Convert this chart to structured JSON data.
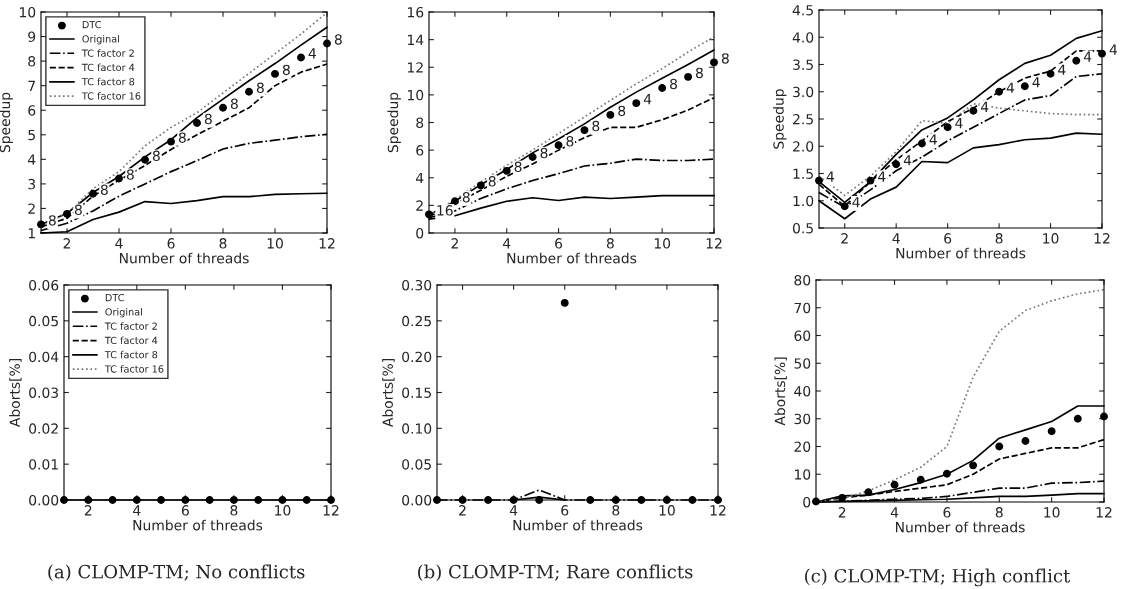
{
  "chart_data": [
    {
      "type": "line",
      "x": [
        1,
        2,
        3,
        4,
        5,
        6,
        7,
        8,
        9,
        10,
        11,
        12
      ],
      "xlim": [
        1,
        12
      ],
      "xticks": [
        2,
        4,
        6,
        8,
        10,
        12
      ],
      "ylim": [
        1,
        10
      ],
      "yticks": [
        1,
        2,
        3,
        4,
        5,
        6,
        7,
        8,
        9,
        10
      ],
      "xlabel": "Number of threads",
      "ylabel": "Speedup",
      "legend": "top left",
      "grid": false,
      "annotations": [
        {
          "text": "8",
          "x": 1,
          "y": 1.35
        },
        {
          "text": "8",
          "x": 2,
          "y": 1.78
        },
        {
          "text": "8",
          "x": 3,
          "y": 2.6
        },
        {
          "text": "8",
          "x": 4,
          "y": 3.22
        },
        {
          "text": "8",
          "x": 5,
          "y": 3.98
        },
        {
          "text": "8",
          "x": 6,
          "y": 4.72
        },
        {
          "text": "8",
          "x": 7,
          "y": 5.48
        },
        {
          "text": "8",
          "x": 8,
          "y": 6.1
        },
        {
          "text": "8",
          "x": 9,
          "y": 6.75
        },
        {
          "text": "8",
          "x": 10,
          "y": 7.48
        },
        {
          "text": "4",
          "x": 11,
          "y": 8.15
        },
        {
          "text": "8",
          "x": 12,
          "y": 8.72
        }
      ],
      "series": [
        {
          "name": "DTC",
          "type": "scatter",
          "marker": "circle",
          "color": "#000000",
          "values": [
            1.35,
            1.78,
            2.6,
            3.22,
            3.98,
            4.72,
            5.48,
            6.1,
            6.75,
            7.48,
            8.15,
            8.72
          ]
        },
        {
          "name": "Original",
          "color": "#000000",
          "line_style": "solid",
          "values": [
            1.0,
            1.05,
            1.55,
            1.85,
            2.28,
            2.2,
            2.32,
            2.48,
            2.48,
            2.57,
            2.6,
            2.62
          ]
        },
        {
          "name": "TC factor 2",
          "color": "#000000",
          "line_style": "dashdot",
          "values": [
            1.1,
            1.4,
            1.9,
            2.5,
            3.0,
            3.5,
            3.95,
            4.42,
            4.65,
            4.78,
            4.92,
            5.02
          ]
        },
        {
          "name": "TC factor 4",
          "color": "#000000",
          "line_style": "dashed",
          "values": [
            1.25,
            1.6,
            2.5,
            3.15,
            3.75,
            4.4,
            5.0,
            5.55,
            6.1,
            7.0,
            7.55,
            7.88
          ]
        },
        {
          "name": "TC factor 8",
          "color": "#000000",
          "line_style": "solid",
          "values": [
            1.35,
            1.8,
            2.65,
            3.3,
            4.1,
            4.8,
            5.7,
            6.45,
            7.2,
            7.9,
            8.65,
            9.38
          ]
        },
        {
          "name": "TC factor 16",
          "color": "#777777",
          "line_style": "dotted",
          "values": [
            1.3,
            1.8,
            2.8,
            3.5,
            4.55,
            5.3,
            5.9,
            6.7,
            7.5,
            8.3,
            9.1,
            9.98
          ]
        }
      ]
    },
    {
      "type": "line",
      "x": [
        1,
        2,
        3,
        4,
        5,
        6,
        7,
        8,
        9,
        10,
        11,
        12
      ],
      "xlim": [
        1,
        12
      ],
      "xticks": [
        2,
        4,
        6,
        8,
        10,
        12
      ],
      "ylim": [
        0,
        16
      ],
      "yticks": [
        0,
        2,
        4,
        6,
        8,
        10,
        12,
        14,
        16
      ],
      "xlabel": "Number of threads",
      "ylabel": "Speedup",
      "grid": false,
      "annotations": [
        {
          "text": "16",
          "x": 1,
          "y": 1.35
        },
        {
          "text": "8",
          "x": 2,
          "y": 2.3
        },
        {
          "text": "8",
          "x": 3,
          "y": 3.45
        },
        {
          "text": "8",
          "x": 4,
          "y": 4.5
        },
        {
          "text": "8",
          "x": 5,
          "y": 5.5
        },
        {
          "text": "8",
          "x": 6,
          "y": 6.35
        },
        {
          "text": "8",
          "x": 7,
          "y": 7.45
        },
        {
          "text": "8",
          "x": 8,
          "y": 8.55
        },
        {
          "text": "4",
          "x": 9,
          "y": 9.4
        },
        {
          "text": "8",
          "x": 10,
          "y": 10.5
        },
        {
          "text": "8",
          "x": 11,
          "y": 11.3
        },
        {
          "text": "8",
          "x": 12,
          "y": 12.35
        }
      ],
      "series": [
        {
          "type": "scatter",
          "marker": "circle",
          "color": "#000000",
          "values": [
            1.35,
            2.3,
            3.45,
            4.5,
            5.5,
            6.35,
            7.45,
            8.55,
            9.4,
            10.5,
            11.3,
            12.35
          ]
        },
        {
          "color": "#000000",
          "line_style": "solid",
          "values": [
            1.0,
            1.25,
            1.8,
            2.3,
            2.55,
            2.35,
            2.6,
            2.5,
            2.6,
            2.7,
            2.7,
            2.7
          ]
        },
        {
          "color": "#000000",
          "line_style": "dashdot",
          "values": [
            1.1,
            1.6,
            2.5,
            3.2,
            3.8,
            4.3,
            4.85,
            5.05,
            5.35,
            5.25,
            5.25,
            5.35
          ]
        },
        {
          "color": "#000000",
          "line_style": "dashed",
          "values": [
            1.2,
            2.1,
            3.1,
            4.1,
            5.0,
            6.0,
            6.9,
            7.65,
            7.65,
            8.2,
            8.9,
            9.8
          ]
        },
        {
          "color": "#000000",
          "line_style": "solid",
          "values": [
            1.3,
            2.3,
            3.5,
            4.6,
            5.8,
            6.8,
            7.9,
            9.1,
            10.2,
            11.2,
            12.2,
            13.25
          ]
        },
        {
          "color": "#777777",
          "line_style": "dotted",
          "values": [
            1.3,
            2.4,
            3.7,
            4.9,
            6.0,
            7.2,
            8.4,
            9.6,
            10.8,
            11.9,
            13.1,
            14.2
          ]
        }
      ]
    },
    {
      "type": "line",
      "x": [
        1,
        2,
        3,
        4,
        5,
        6,
        7,
        8,
        9,
        10,
        11,
        12
      ],
      "xlim": [
        1,
        12
      ],
      "xticks": [
        2,
        4,
        6,
        8,
        10,
        12
      ],
      "ylim": [
        0.5,
        4.5
      ],
      "yticks": [
        {
          "value": 0.5,
          "label": "0.5"
        },
        {
          "value": 1,
          "label": "1.0"
        },
        {
          "value": 1.5,
          "label": "1.5"
        },
        {
          "value": 2,
          "label": "2.0"
        },
        {
          "value": 2.5,
          "label": "2.5"
        },
        {
          "value": 3,
          "label": "3.0"
        },
        {
          "value": 3.5,
          "label": "3.5"
        },
        {
          "value": 4,
          "label": "4.0"
        },
        {
          "value": 4.5,
          "label": "4.5"
        }
      ],
      "xlabel": "Number of threads",
      "ylabel": "Speedup",
      "grid": false,
      "annotations": [
        {
          "text": "4",
          "x": 1,
          "y": 1.37
        },
        {
          "text": "4",
          "x": 2,
          "y": 0.9
        },
        {
          "text": "4",
          "x": 3,
          "y": 1.37
        },
        {
          "text": "4",
          "x": 4,
          "y": 1.67
        },
        {
          "text": "4",
          "x": 5,
          "y": 2.05
        },
        {
          "text": "4",
          "x": 6,
          "y": 2.35
        },
        {
          "text": "4",
          "x": 7,
          "y": 2.65
        },
        {
          "text": "4",
          "x": 8,
          "y": 3.0
        },
        {
          "text": "4",
          "x": 9,
          "y": 3.1
        },
        {
          "text": "4",
          "x": 10,
          "y": 3.33
        },
        {
          "text": "4",
          "x": 11,
          "y": 3.57
        },
        {
          "text": "4",
          "x": 12,
          "y": 3.7
        }
      ],
      "series": [
        {
          "type": "scatter",
          "marker": "circle",
          "color": "#000000",
          "values": [
            1.37,
            0.9,
            1.37,
            1.67,
            2.05,
            2.35,
            2.65,
            3.0,
            3.1,
            3.33,
            3.57,
            3.7
          ]
        },
        {
          "color": "#000000",
          "line_style": "solid",
          "values": [
            1.0,
            0.67,
            1.03,
            1.25,
            1.72,
            1.7,
            1.97,
            2.03,
            2.12,
            2.15,
            2.24,
            2.22
          ]
        },
        {
          "color": "#000000",
          "line_style": "dashdot",
          "values": [
            1.15,
            0.88,
            1.2,
            1.55,
            1.8,
            2.1,
            2.35,
            2.6,
            2.85,
            2.93,
            3.28,
            3.33
          ]
        },
        {
          "color": "#000000",
          "line_style": "dashed",
          "values": [
            1.3,
            0.9,
            1.35,
            1.75,
            2.1,
            2.45,
            2.7,
            3.0,
            3.25,
            3.38,
            3.75,
            3.75
          ]
        },
        {
          "color": "#000000",
          "line_style": "solid",
          "values": [
            1.35,
            0.97,
            1.35,
            1.85,
            2.3,
            2.52,
            2.85,
            3.22,
            3.52,
            3.67,
            3.98,
            4.12
          ]
        },
        {
          "color": "#777777",
          "line_style": "dotted",
          "values": [
            1.45,
            1.1,
            1.45,
            1.9,
            2.47,
            2.42,
            2.78,
            2.7,
            2.65,
            2.6,
            2.58,
            2.58
          ]
        }
      ]
    },
    {
      "type": "line",
      "x": [
        1,
        2,
        3,
        4,
        5,
        6,
        7,
        8,
        9,
        10,
        11,
        12
      ],
      "xlim": [
        1,
        12
      ],
      "xticks": [
        2,
        4,
        6,
        8,
        10,
        12
      ],
      "ylim": [
        0,
        0.06
      ],
      "yticks": [
        {
          "value": 0,
          "label": "0.00"
        },
        {
          "value": 0.01,
          "label": "0.01"
        },
        {
          "value": 0.02,
          "label": "0.02"
        },
        {
          "value": 0.03,
          "label": "0.03"
        },
        {
          "value": 0.04,
          "label": "0.04"
        },
        {
          "value": 0.05,
          "label": "0.05"
        },
        {
          "value": 0.06,
          "label": "0.06"
        }
      ],
      "xlabel": "Number of threads",
      "ylabel": "Aborts[%]",
      "legend": "top left",
      "grid": false,
      "annotations": [
        "(a) CLOMP-TM; No conflicts"
      ],
      "series": [
        {
          "name": "DTC",
          "type": "scatter",
          "marker": "circle",
          "color": "#000000",
          "values": [
            0,
            0,
            0,
            0,
            0,
            0,
            0,
            0,
            0,
            0,
            0,
            0
          ]
        },
        {
          "name": "Original",
          "color": "#000000",
          "line_style": "solid",
          "values": [
            0,
            0,
            0,
            0,
            0,
            0,
            0,
            0,
            0,
            0,
            0,
            0
          ]
        },
        {
          "name": "TC factor 2",
          "color": "#000000",
          "line_style": "dashdot",
          "values": [
            null,
            null,
            null,
            null,
            null,
            null,
            null,
            null,
            null,
            null,
            null,
            null
          ]
        },
        {
          "name": "TC factor 4",
          "color": "#000000",
          "line_style": "dashed",
          "values": [
            null,
            null,
            null,
            null,
            null,
            null,
            null,
            null,
            null,
            null,
            null,
            null
          ]
        },
        {
          "name": "TC factor 8",
          "color": "#000000",
          "line_style": "solid",
          "values": [
            null,
            null,
            null,
            null,
            null,
            null,
            null,
            null,
            null,
            null,
            null,
            null
          ]
        },
        {
          "name": "TC factor 16",
          "color": "#777777",
          "line_style": "dotted",
          "values": [
            null,
            null,
            null,
            null,
            null,
            null,
            null,
            null,
            null,
            null,
            null,
            null
          ]
        }
      ]
    },
    {
      "type": "line",
      "x": [
        1,
        2,
        3,
        4,
        5,
        6,
        7,
        8,
        9,
        10,
        11,
        12
      ],
      "xlim": [
        1,
        12
      ],
      "xticks": [
        2,
        4,
        6,
        8,
        10,
        12
      ],
      "ylim": [
        0,
        0.3
      ],
      "yticks": [
        {
          "value": 0,
          "label": "0.00"
        },
        {
          "value": 0.05,
          "label": "0.05"
        },
        {
          "value": 0.1,
          "label": "0.10"
        },
        {
          "value": 0.15,
          "label": "0.15"
        },
        {
          "value": 0.2,
          "label": "0.20"
        },
        {
          "value": 0.25,
          "label": "0.25"
        },
        {
          "value": 0.3,
          "label": "0.30"
        }
      ],
      "xlabel": "Number of threads",
      "ylabel": "Aborts[%]",
      "grid": false,
      "annotations": [
        "(b) CLOMP-TM; Rare conflicts"
      ],
      "series": [
        {
          "type": "scatter",
          "marker": "circle",
          "color": "#000000",
          "values": [
            0,
            0,
            0,
            0,
            0,
            0.275,
            0,
            0,
            0,
            0,
            0,
            0
          ]
        },
        {
          "color": "#000000",
          "line_style": "dashdot",
          "values": [
            0,
            0,
            0,
            0,
            0.014,
            0,
            0,
            0,
            0,
            0,
            0,
            0
          ]
        },
        {
          "color": "#000000",
          "line_style": "solid",
          "values": [
            null,
            null,
            null,
            0,
            0.004,
            0,
            null,
            null,
            null,
            null,
            null,
            null
          ]
        }
      ]
    },
    {
      "type": "line",
      "x": [
        1,
        2,
        3,
        4,
        5,
        6,
        7,
        8,
        9,
        10,
        11,
        12
      ],
      "xlim": [
        1,
        12
      ],
      "xticks": [
        2,
        4,
        6,
        8,
        10,
        12
      ],
      "ylim": [
        0,
        80
      ],
      "yticks": [
        0,
        10,
        20,
        30,
        40,
        50,
        60,
        70,
        80
      ],
      "xlabel": "Number of threads",
      "ylabel": "Aborts[%]",
      "grid": false,
      "annotations": [
        "(c) CLOMP-TM; High conflict"
      ],
      "series": [
        {
          "type": "scatter",
          "marker": "circle",
          "color": "#000000",
          "values": [
            0.2,
            1.5,
            3.5,
            6.2,
            8.0,
            10.2,
            13.2,
            20.0,
            22.0,
            25.5,
            30.0,
            30.8
          ]
        },
        {
          "color": "#000000",
          "line_style": "solid",
          "values": [
            0,
            0.2,
            0.4,
            0.6,
            0.8,
            1.0,
            1.5,
            2.0,
            2.0,
            2.5,
            3.0,
            3.0
          ]
        },
        {
          "color": "#000000",
          "line_style": "dashdot",
          "values": [
            0,
            0.3,
            0.6,
            1.0,
            1.3,
            2.0,
            3.5,
            5.0,
            5.0,
            6.8,
            7.0,
            7.5
          ]
        },
        {
          "color": "#000000",
          "line_style": "dashed",
          "values": [
            0,
            1.5,
            2.5,
            3.8,
            5.0,
            6.2,
            10.0,
            15.5,
            17.5,
            19.5,
            19.5,
            22.5
          ]
        },
        {
          "color": "#000000",
          "line_style": "solid",
          "values": [
            0,
            2.2,
            2.5,
            4.5,
            7.0,
            10.0,
            15.0,
            23.0,
            26.0,
            29.0,
            34.6,
            34.6
          ]
        },
        {
          "color": "#777777",
          "line_style": "dotted",
          "values": [
            0,
            1.2,
            4.0,
            8.0,
            12.5,
            20.0,
            45.0,
            61.5,
            69.0,
            72.5,
            75.0,
            76.5
          ]
        }
      ]
    }
  ]
}
